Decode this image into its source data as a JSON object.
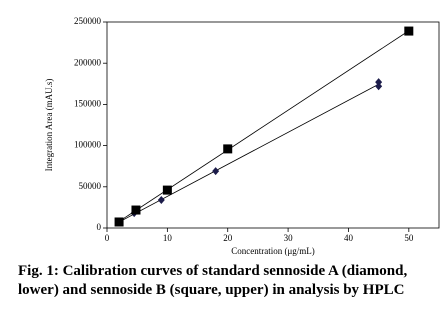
{
  "chart_data": {
    "type": "scatter",
    "xlabel": "Concentration (μg/mL)",
    "ylabel": "Integration Area (mAU.s)",
    "xlim": [
      0,
      55
    ],
    "xticks": [
      0,
      10,
      20,
      30,
      40,
      50
    ],
    "ylim": [
      0,
      250000
    ],
    "yticks": [
      0,
      50000,
      100000,
      150000,
      200000,
      250000
    ],
    "fit": "linear",
    "series": [
      {
        "marker": "diamond",
        "color": "#1c1c4a",
        "x": [
          2,
          4.5,
          9,
          18,
          45,
          45
        ],
        "values": [
          7000,
          18000,
          34000,
          69000,
          177000,
          172000
        ]
      },
      {
        "marker": "square",
        "color": "#000000",
        "x": [
          2,
          4.8,
          10,
          20,
          50
        ],
        "values": [
          7300,
          21800,
          46000,
          96000,
          239000
        ]
      }
    ],
    "caption": "Fig. 1: Calibration curves of standard sennoside A (diamond, lower) and sennoside B (square, upper) in analysis by HPLC"
  }
}
